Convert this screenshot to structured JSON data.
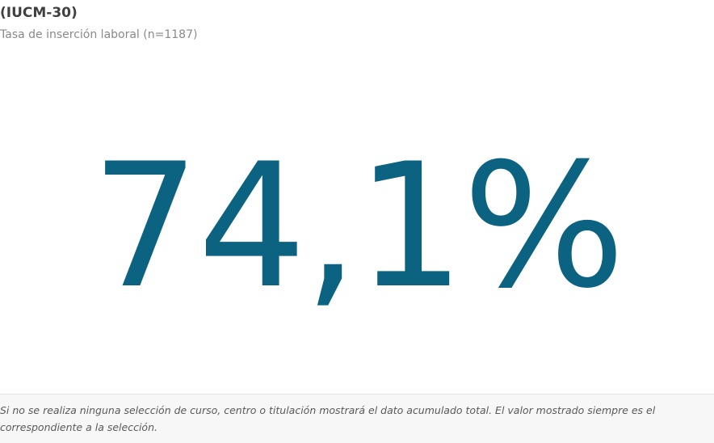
{
  "header": {
    "title": "(IUCM-30)",
    "subtitle": "Tasa de inserción laboral (n=1187)"
  },
  "kpi": {
    "value": "74,1%"
  },
  "footer": {
    "note": "Si no se realiza ninguna selección de curso, centro o titulación mostrará el dato acumulado total. El valor mostrado siempre es el correspondiente a la selección."
  }
}
